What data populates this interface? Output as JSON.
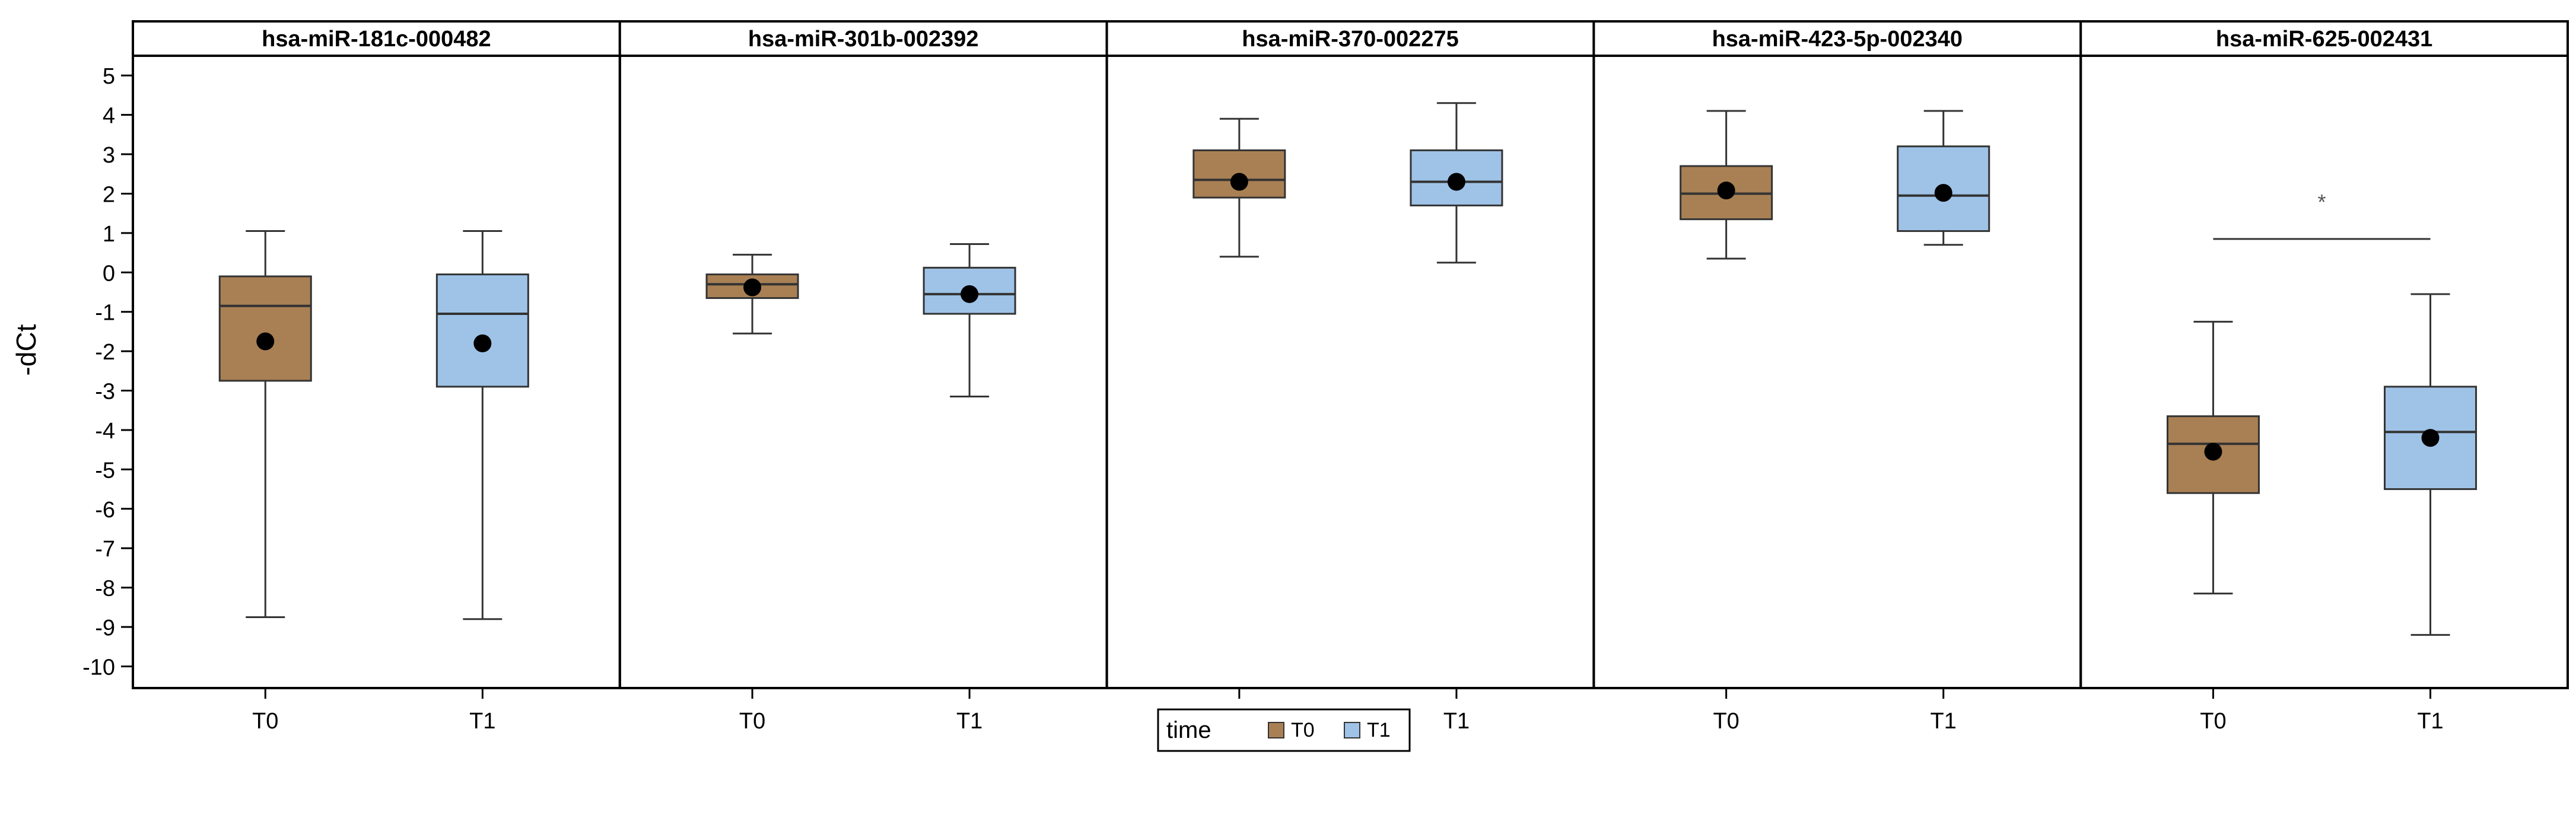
{
  "chart_data": {
    "type": "boxplot",
    "ylabel": "-dCt",
    "ylim": [
      -10.55,
      5.5
    ],
    "yticks": [
      5,
      4,
      3,
      2,
      1,
      0,
      -1,
      -2,
      -3,
      -4,
      -5,
      -6,
      -7,
      -8,
      -9,
      -10
    ],
    "categories": [
      "T0",
      "T1"
    ],
    "colors": {
      "T0": "#a98054",
      "T1": "#9fc3e7"
    },
    "legend": {
      "title": "time",
      "entries": [
        "T0",
        "T1"
      ],
      "position": "bottom-center"
    },
    "panels": [
      {
        "title": "hsa-miR-181c-000482",
        "boxes": [
          {
            "group": "T0",
            "min": -8.75,
            "q1": -2.75,
            "median": -0.85,
            "q3": -0.1,
            "max": 1.05,
            "mean": -1.75
          },
          {
            "group": "T1",
            "min": -8.8,
            "q1": -2.9,
            "median": -1.05,
            "q3": -0.05,
            "max": 1.05,
            "mean": -1.8
          }
        ]
      },
      {
        "title": "hsa-miR-301b-002392",
        "boxes": [
          {
            "group": "T0",
            "min": -1.55,
            "q1": -0.65,
            "median": -0.3,
            "q3": -0.05,
            "max": 0.45,
            "mean": -0.38
          },
          {
            "group": "T1",
            "min": -3.15,
            "q1": -1.05,
            "median": -0.55,
            "q3": 0.12,
            "max": 0.72,
            "mean": -0.55
          }
        ]
      },
      {
        "title": "hsa-miR-370-002275",
        "boxes": [
          {
            "group": "T0",
            "min": 0.4,
            "q1": 1.9,
            "median": 2.35,
            "q3": 3.1,
            "max": 3.9,
            "mean": 2.3
          },
          {
            "group": "T1",
            "min": 0.25,
            "q1": 1.7,
            "median": 2.3,
            "q3": 3.1,
            "max": 4.3,
            "mean": 2.3
          }
        ]
      },
      {
        "title": "hsa-miR-423-5p-002340",
        "boxes": [
          {
            "group": "T0",
            "min": 0.35,
            "q1": 1.35,
            "median": 2.0,
            "q3": 2.7,
            "max": 4.1,
            "mean": 2.08
          },
          {
            "group": "T1",
            "min": 0.7,
            "q1": 1.05,
            "median": 1.95,
            "q3": 3.2,
            "max": 4.1,
            "mean": 2.02
          }
        ]
      },
      {
        "title": "hsa-miR-625-002431",
        "boxes": [
          {
            "group": "T0",
            "min": -8.15,
            "q1": -5.6,
            "median": -4.35,
            "q3": -3.65,
            "max": -1.25,
            "mean": -4.55
          },
          {
            "group": "T1",
            "min": -9.2,
            "q1": -5.5,
            "median": -4.05,
            "q3": -2.9,
            "max": -0.55,
            "mean": -4.2
          }
        ],
        "significance": {
          "label": "*",
          "y": 0.85
        }
      }
    ]
  }
}
